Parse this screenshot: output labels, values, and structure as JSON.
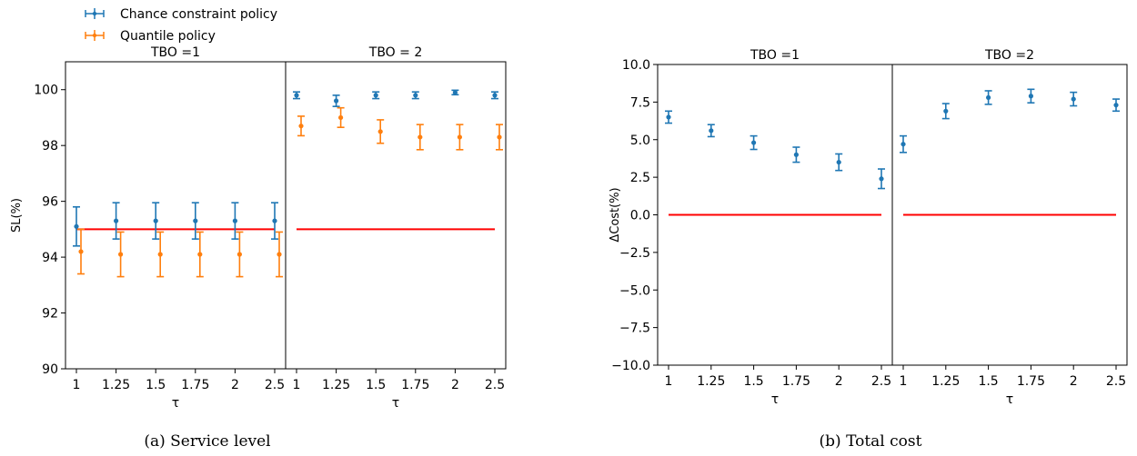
{
  "legend": {
    "entries": [
      {
        "label": "Chance constraint policy",
        "color": "#1f77b4"
      },
      {
        "label": "Quantile policy",
        "color": "#ff7f0e"
      }
    ]
  },
  "reference_line_color": "#ff0000",
  "captions": {
    "a": "(a) Service level",
    "b": "(b) Total cost"
  },
  "chart_data": [
    {
      "type": "scatter",
      "id": "service-level",
      "ylabel": "SL(%)",
      "xlabel": "τ",
      "ylim": [
        90,
        101
      ],
      "yticks": [
        90,
        92,
        94,
        96,
        98,
        100
      ],
      "ytick_labels": [
        "90",
        "92",
        "94",
        "96",
        "98",
        "100"
      ],
      "panels": [
        {
          "title": "TBO =1",
          "x_labels": [
            "1",
            "1.25",
            "1.5",
            "1.75",
            "2",
            "2.5"
          ],
          "series": [
            {
              "name": "Chance constraint policy",
              "color": "#1f77b4",
              "values": [
                95.1,
                95.3,
                95.3,
                95.3,
                95.3,
                95.3
              ],
              "error": [
                0.7,
                0.65,
                0.65,
                0.65,
                0.65,
                0.65
              ]
            },
            {
              "name": "Quantile policy",
              "color": "#ff7f0e",
              "values": [
                94.2,
                94.1,
                94.1,
                94.1,
                94.1,
                94.1
              ],
              "error": [
                0.8,
                0.8,
                0.8,
                0.8,
                0.8,
                0.8
              ]
            }
          ],
          "reference": 95
        },
        {
          "title": "TBO = 2",
          "x_labels": [
            "1",
            "1.25",
            "1.5",
            "1.75",
            "2",
            "2.5"
          ],
          "series": [
            {
              "name": "Chance constraint policy",
              "color": "#1f77b4",
              "values": [
                99.8,
                99.6,
                99.8,
                99.8,
                99.9,
                99.8
              ],
              "error": [
                0.12,
                0.2,
                0.12,
                0.12,
                0.08,
                0.12
              ]
            },
            {
              "name": "Quantile policy",
              "color": "#ff7f0e",
              "values": [
                98.7,
                99.0,
                98.5,
                98.3,
                98.3,
                98.3
              ],
              "error": [
                0.35,
                0.35,
                0.42,
                0.45,
                0.45,
                0.45
              ]
            }
          ],
          "reference": 95
        }
      ]
    },
    {
      "type": "scatter",
      "id": "total-cost",
      "ylabel": "ΔCost(%)",
      "xlabel": "τ",
      "ylim": [
        -10,
        10
      ],
      "yticks": [
        -10,
        -7.5,
        -5,
        -2.5,
        0,
        2.5,
        5,
        7.5,
        10
      ],
      "ytick_labels": [
        "−10.0",
        "−7.5",
        "−5.0",
        "−2.5",
        "0.0",
        "2.5",
        "5.0",
        "7.5",
        "10.0"
      ],
      "panels": [
        {
          "title": "TBO =1",
          "x_labels": [
            "1",
            "1.25",
            "1.5",
            "1.75",
            "2",
            "2.5"
          ],
          "series": [
            {
              "name": "Chance constraint policy",
              "color": "#1f77b4",
              "values": [
                6.5,
                5.6,
                4.8,
                4.0,
                3.5,
                2.4
              ],
              "error": [
                0.4,
                0.4,
                0.45,
                0.5,
                0.55,
                0.65
              ]
            }
          ],
          "reference": 0
        },
        {
          "title": "TBO =2",
          "x_labels": [
            "1",
            "1.25",
            "1.5",
            "1.75",
            "2",
            "2.5"
          ],
          "series": [
            {
              "name": "Chance constraint policy",
              "color": "#1f77b4",
              "values": [
                4.7,
                6.9,
                7.8,
                7.9,
                7.7,
                7.3
              ],
              "error": [
                0.55,
                0.5,
                0.45,
                0.45,
                0.45,
                0.4
              ]
            }
          ],
          "reference": 0
        }
      ]
    }
  ]
}
